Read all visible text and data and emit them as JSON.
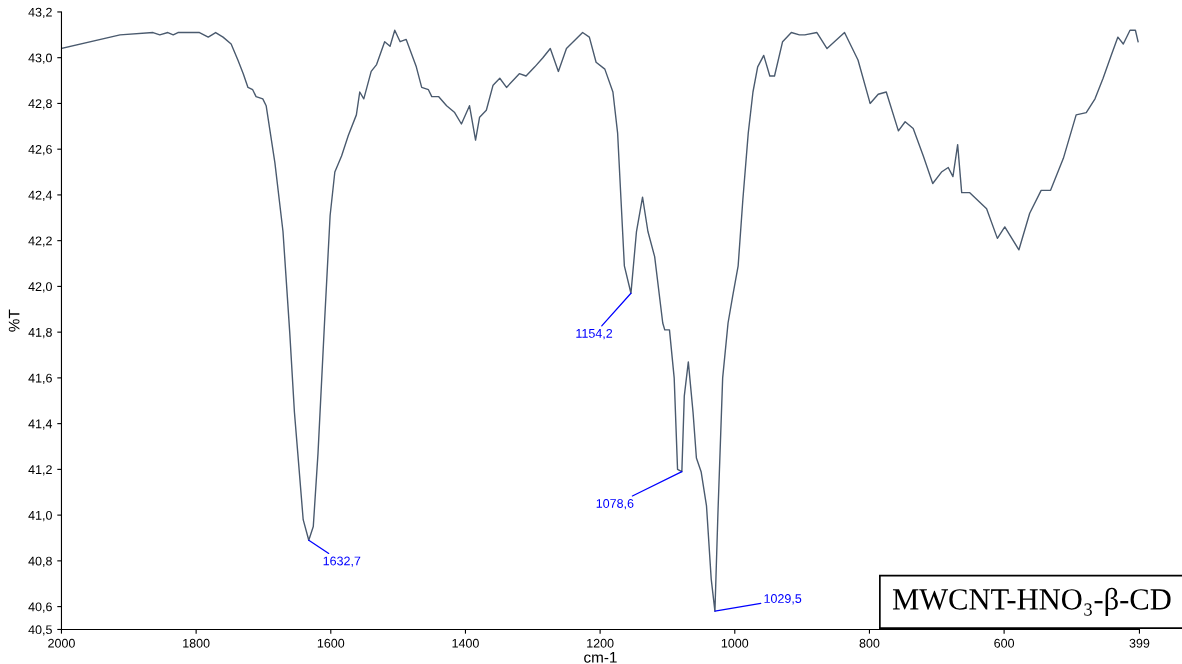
{
  "chart_data": {
    "type": "line",
    "xlabel": "cm-1",
    "ylabel": "%T",
    "xlim": [
      2000,
      399
    ],
    "xticks": [
      2000,
      1800,
      1600,
      1400,
      1200,
      1000,
      800,
      600,
      399
    ],
    "ylim": [
      40.5,
      43.2
    ],
    "yticks": [
      {
        "value": 40.5,
        "label": "40,5"
      },
      {
        "value": 40.6,
        "label": "40,6"
      },
      {
        "value": 40.8,
        "label": "40,8"
      },
      {
        "value": 41.0,
        "label": "41,0"
      },
      {
        "value": 41.2,
        "label": "41,2"
      },
      {
        "value": 41.4,
        "label": "41,4"
      },
      {
        "value": 41.6,
        "label": "41,6"
      },
      {
        "value": 41.8,
        "label": "41,8"
      },
      {
        "value": 42.0,
        "label": "42,0"
      },
      {
        "value": 42.2,
        "label": "42,2"
      },
      {
        "value": 42.4,
        "label": "42,4"
      },
      {
        "value": 42.6,
        "label": "42,6"
      },
      {
        "value": 42.8,
        "label": "42,8"
      },
      {
        "value": 43.0,
        "label": "43,0"
      },
      {
        "value": 43.2,
        "label": "43,2"
      }
    ],
    "grid": false,
    "marker": "none",
    "line_style": "solid",
    "series": [
      {
        "color": "#4a5a6e",
        "x": [
          2000,
          1913,
          1864,
          1854,
          1842,
          1834,
          1827,
          1795,
          1782,
          1771,
          1760,
          1748,
          1738,
          1730,
          1723,
          1716,
          1711,
          1701,
          1696,
          1683,
          1671,
          1661,
          1654,
          1649,
          1641,
          1632.7,
          1626,
          1619,
          1609,
          1601,
          1594,
          1584,
          1574,
          1562,
          1557,
          1551,
          1540,
          1532,
          1520,
          1512,
          1505,
          1497,
          1488,
          1473,
          1465,
          1455,
          1450,
          1440,
          1428,
          1416,
          1406,
          1394,
          1385,
          1379,
          1369,
          1359,
          1349,
          1339,
          1320,
          1310,
          1297,
          1285,
          1274,
          1262,
          1250,
          1226,
          1216,
          1206,
          1193,
          1181,
          1174,
          1169,
          1164,
          1154.2,
          1146,
          1137,
          1129,
          1119,
          1107,
          1104,
          1097,
          1090,
          1085,
          1078.6,
          1075,
          1069,
          1062,
          1057,
          1050,
          1042,
          1035,
          1029.5,
          1025,
          1018,
          1010,
          1003,
          995,
          988,
          980,
          973,
          966,
          957,
          948,
          941,
          929,
          916,
          904,
          896,
          878,
          863,
          837,
          817,
          799,
          787,
          775,
          757,
          747,
          735,
          720,
          706,
          693,
          683,
          676,
          669,
          663,
          651,
          626,
          610,
          599,
          578,
          562,
          545,
          531,
          512,
          493,
          478,
          465,
          453,
          441,
          431,
          423,
          413,
          405,
          401
        ],
        "values": [
          43.04,
          43.1,
          43.11,
          43.1,
          43.11,
          43.1,
          43.11,
          43.11,
          43.09,
          43.11,
          43.09,
          43.06,
          42.99,
          42.93,
          42.87,
          42.86,
          42.83,
          42.82,
          42.79,
          42.54,
          42.24,
          41.8,
          41.45,
          41.27,
          40.98,
          40.89,
          40.95,
          41.27,
          41.86,
          42.31,
          42.5,
          42.57,
          42.66,
          42.75,
          42.85,
          42.82,
          42.94,
          42.97,
          43.07,
          43.05,
          43.12,
          43.07,
          43.08,
          42.96,
          42.87,
          42.86,
          42.83,
          42.83,
          42.79,
          42.76,
          42.71,
          42.79,
          42.64,
          42.74,
          42.77,
          42.88,
          42.91,
          42.87,
          42.93,
          42.92,
          42.96,
          43.0,
          43.04,
          42.94,
          43.04,
          43.11,
          43.09,
          42.98,
          42.95,
          42.85,
          42.67,
          42.38,
          42.09,
          41.97,
          42.24,
          42.39,
          42.24,
          42.13,
          41.84,
          41.81,
          41.81,
          41.6,
          41.2,
          41.19,
          41.52,
          41.67,
          41.45,
          41.25,
          41.19,
          41.04,
          40.72,
          40.58,
          41.01,
          41.6,
          41.84,
          41.96,
          42.09,
          42.38,
          42.67,
          42.85,
          42.96,
          43.01,
          42.92,
          42.92,
          43.07,
          43.11,
          43.1,
          43.1,
          43.11,
          43.04,
          43.11,
          42.99,
          42.8,
          42.84,
          42.85,
          42.68,
          42.72,
          42.69,
          42.57,
          42.45,
          42.5,
          42.52,
          42.48,
          42.62,
          42.41,
          42.41,
          42.34,
          42.21,
          42.26,
          42.16,
          42.32,
          42.42,
          42.42,
          42.56,
          42.75,
          42.76,
          42.82,
          42.91,
          43.01,
          43.09,
          43.06,
          43.12,
          43.12,
          43.07
        ]
      }
    ],
    "annotations": [
      {
        "text": "1632,7",
        "x": 1632.7,
        "y": 40.89
      },
      {
        "text": "1154,2",
        "x": 1154.2,
        "y": 41.97
      },
      {
        "text": "1078,6",
        "x": 1078.6,
        "y": 41.19
      },
      {
        "text": "1029,5",
        "x": 1029.5,
        "y": 40.58
      },
      "MWCNT-HNO₃-β-CD"
    ]
  }
}
